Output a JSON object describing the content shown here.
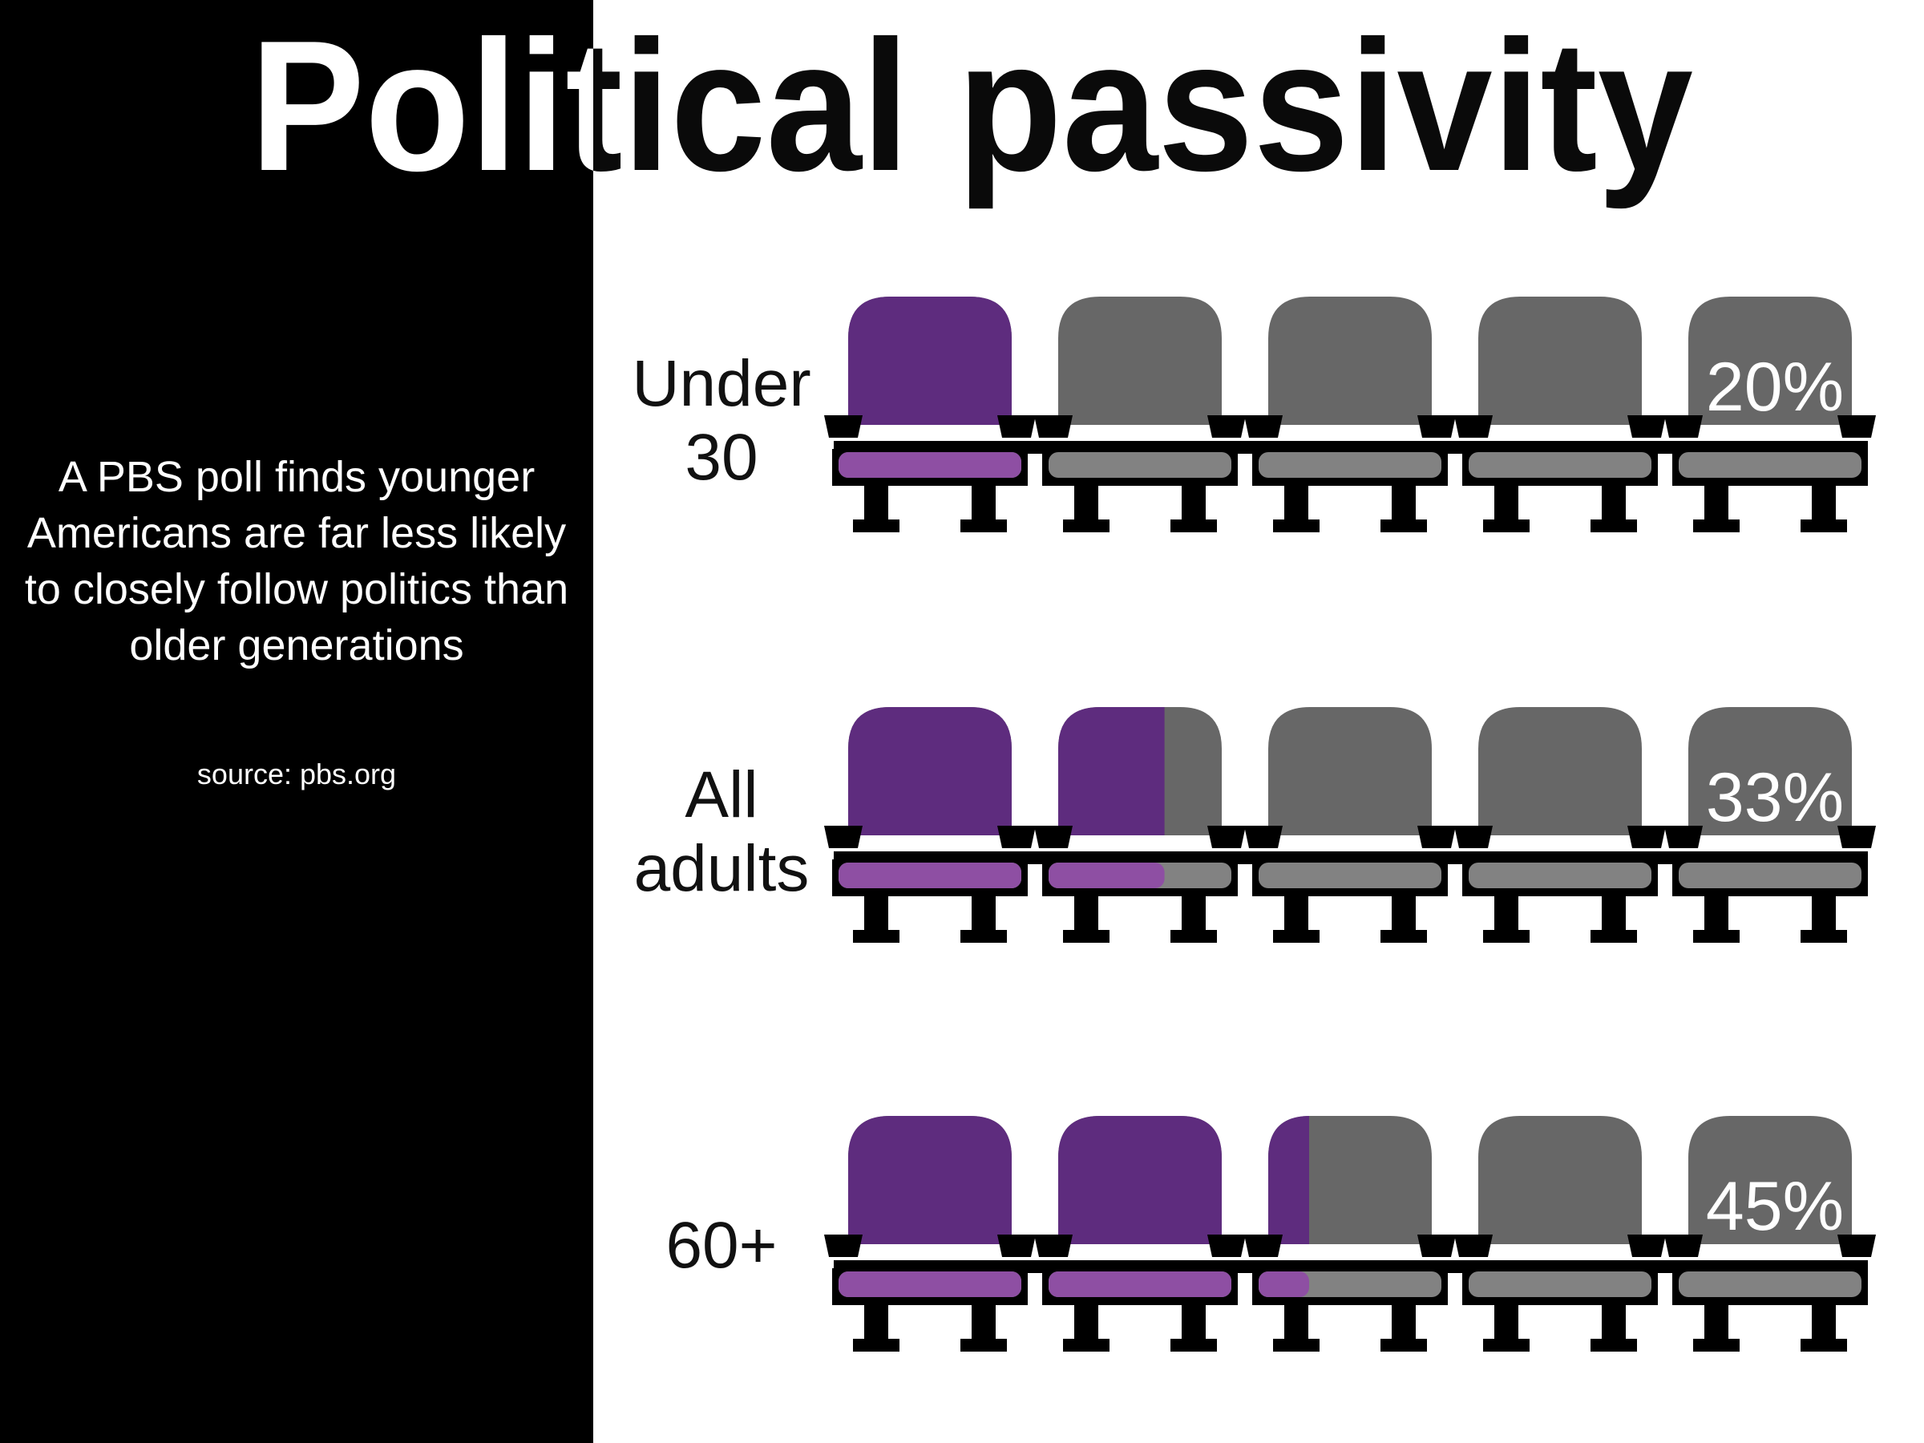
{
  "title": "Political passivity",
  "intro": "A PBS poll finds younger Americans are far less likely to closely follow politics than older generations",
  "source": "source: pbs.org",
  "colors": {
    "filled_back": "#5e2c7e",
    "filled_seat": "#8e4fa3",
    "empty_back": "#676767",
    "empty_seat": "#828282",
    "frame": "#000000",
    "panel": "#000000",
    "background": "#ffffff"
  },
  "chart_data": {
    "type": "pictograph",
    "icon": "theater-seat-icon",
    "seats_per_row": 5,
    "categories": [
      "Under 30",
      "All adults",
      "60+"
    ],
    "values": [
      20,
      33,
      45
    ],
    "value_labels": [
      "20%",
      "33%",
      "45%"
    ],
    "unit": "%"
  },
  "rows": [
    {
      "label_line1": "Under",
      "label_line2": "30",
      "value_label": "20%"
    },
    {
      "label_line1": "All",
      "label_line2": "adults",
      "value_label": "33%"
    },
    {
      "label_line1": "",
      "label_line2": "60+",
      "value_label": "45%"
    }
  ]
}
